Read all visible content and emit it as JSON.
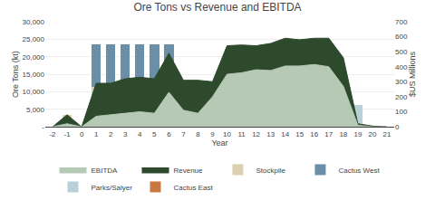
{
  "chart_data": {
    "type": "bar",
    "title": "Ore Tons vs Revenue and EBITDA",
    "x_label": "Year",
    "y_label": "Ore Tons (kt)",
    "y2_label": "$US Millions",
    "stacked": true,
    "grid": true,
    "legend": "bottom",
    "xlim": [
      -2.5,
      21.5
    ],
    "xticks": [
      -2,
      -1,
      0,
      1,
      2,
      3,
      4,
      5,
      6,
      7,
      8,
      9,
      10,
      11,
      12,
      13,
      14,
      15,
      16,
      17,
      18,
      19,
      20,
      21
    ],
    "ylim": [
      0,
      30000
    ],
    "yticks": [
      {
        "value": 0,
        "label": "-"
      },
      {
        "value": 5000,
        "label": "5,000"
      },
      {
        "value": 10000,
        "label": "10,000"
      },
      {
        "value": 15000,
        "label": "15,000"
      },
      {
        "value": 20000,
        "label": "20,000"
      },
      {
        "value": 25000,
        "label": "25,000"
      },
      {
        "value": 30000,
        "label": "30,000"
      }
    ],
    "y2lim": [
      0,
      700
    ],
    "y2ticks": [
      0,
      100,
      200,
      300,
      400,
      500,
      600,
      700
    ],
    "series": [
      {
        "name": "EBITDA",
        "type": "area",
        "axis": "y2",
        "color": "#b5c9b5",
        "x": [
          -2,
          -1,
          0,
          1,
          2,
          3,
          4,
          5,
          6,
          7,
          8,
          9,
          10,
          11,
          12,
          13,
          14,
          15,
          16,
          17,
          18,
          19,
          20,
          21
        ],
        "values": [
          0,
          20,
          0,
          70,
          80,
          90,
          100,
          90,
          230,
          110,
          90,
          200,
          350,
          360,
          380,
          375,
          405,
          405,
          415,
          400,
          270,
          10,
          0,
          0
        ]
      },
      {
        "name": "Revenue",
        "type": "area",
        "axis": "y2",
        "color": "#2d4a2d",
        "x": [
          -2,
          -1,
          0,
          1,
          2,
          3,
          4,
          5,
          6,
          7,
          8,
          9,
          10,
          11,
          12,
          13,
          14,
          15,
          16,
          17,
          18,
          19,
          20,
          21
        ],
        "values": [
          0,
          80,
          0,
          290,
          290,
          320,
          330,
          320,
          490,
          310,
          310,
          300,
          540,
          545,
          540,
          555,
          590,
          580,
          590,
          590,
          460,
          20,
          5,
          0
        ]
      },
      {
        "name": "Stockpile",
        "type": "bar",
        "axis": "y",
        "color": "#ddd0b0",
        "x": [
          -1,
          1,
          2,
          3,
          4,
          5,
          6,
          7,
          8,
          9,
          10,
          11,
          12,
          13,
          14,
          15,
          16,
          17,
          18,
          19
        ],
        "values": [
          3400,
          11500,
          11500,
          11500,
          11500,
          11500,
          11500,
          0,
          0,
          0,
          0,
          0,
          0,
          0,
          0,
          0,
          0,
          0,
          0,
          0
        ]
      },
      {
        "name": "Cactus West",
        "type": "bar",
        "axis": "y",
        "color": "#6b8fa8",
        "x": [
          -1,
          1,
          2,
          3,
          4,
          5,
          6,
          7,
          8,
          9,
          10,
          11,
          12,
          13,
          14,
          15,
          16,
          17,
          18,
          19
        ],
        "values": [
          0,
          12000,
          12000,
          12000,
          12000,
          12000,
          12000,
          4600,
          0,
          0,
          0,
          0,
          0,
          0,
          0,
          0,
          0,
          0,
          0,
          0
        ]
      },
      {
        "name": "Parks/Salyer",
        "type": "bar",
        "axis": "y",
        "color": "#b8d0d8",
        "x": [
          -1,
          1,
          2,
          3,
          4,
          5,
          6,
          7,
          8,
          9,
          10,
          11,
          12,
          13,
          14,
          15,
          16,
          17,
          18,
          19
        ],
        "values": [
          0,
          0,
          0,
          0,
          0,
          0,
          0,
          0,
          6300,
          6300,
          6300,
          6300,
          6300,
          6300,
          6300,
          6300,
          6300,
          6300,
          6300,
          6300
        ]
      },
      {
        "name": "Cactus East",
        "type": "bar",
        "axis": "y",
        "color": "#c87941",
        "x": [
          -1,
          1,
          2,
          3,
          4,
          5,
          6,
          7,
          8,
          9,
          10,
          11,
          12,
          13,
          14,
          15,
          16,
          17,
          18,
          19
        ],
        "values": [
          0,
          0,
          0,
          0,
          0,
          0,
          0,
          0,
          0,
          0,
          4200,
          4200,
          4200,
          4200,
          4200,
          4200,
          4200,
          4200,
          0,
          0
        ]
      }
    ]
  }
}
